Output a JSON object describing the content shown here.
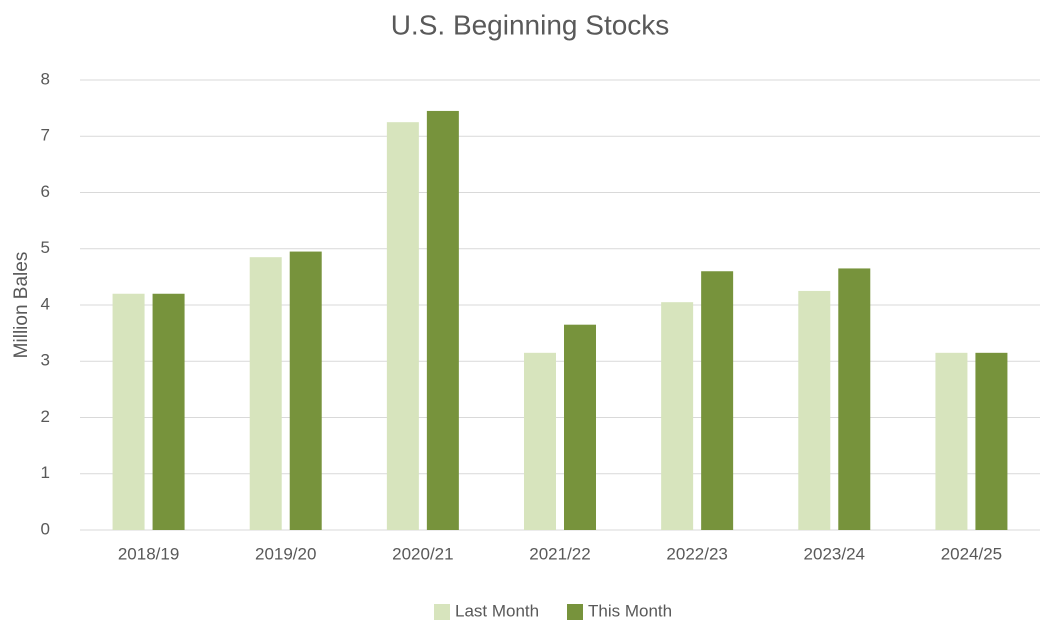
{
  "chart_data": {
    "type": "bar",
    "title": "U.S. Beginning Stocks",
    "y_label": "Million Bales",
    "categories": [
      "2018/19",
      "2019/20",
      "2020/21",
      "2021/22",
      "2022/23",
      "2023/24",
      "2024/25"
    ],
    "series": [
      {
        "name": "Last Month",
        "color": "#d7e4bd",
        "values": [
          4.2,
          4.85,
          7.25,
          3.15,
          4.05,
          4.25,
          3.15
        ]
      },
      {
        "name": "This Month",
        "color": "#77933c",
        "values": [
          4.2,
          4.95,
          7.45,
          3.65,
          4.6,
          4.65,
          3.15
        ]
      }
    ],
    "ylim": [
      0,
      8
    ],
    "yticks": [
      0,
      1,
      2,
      3,
      4,
      5,
      6,
      7,
      8
    ],
    "grid": true,
    "legend": "bottom"
  }
}
